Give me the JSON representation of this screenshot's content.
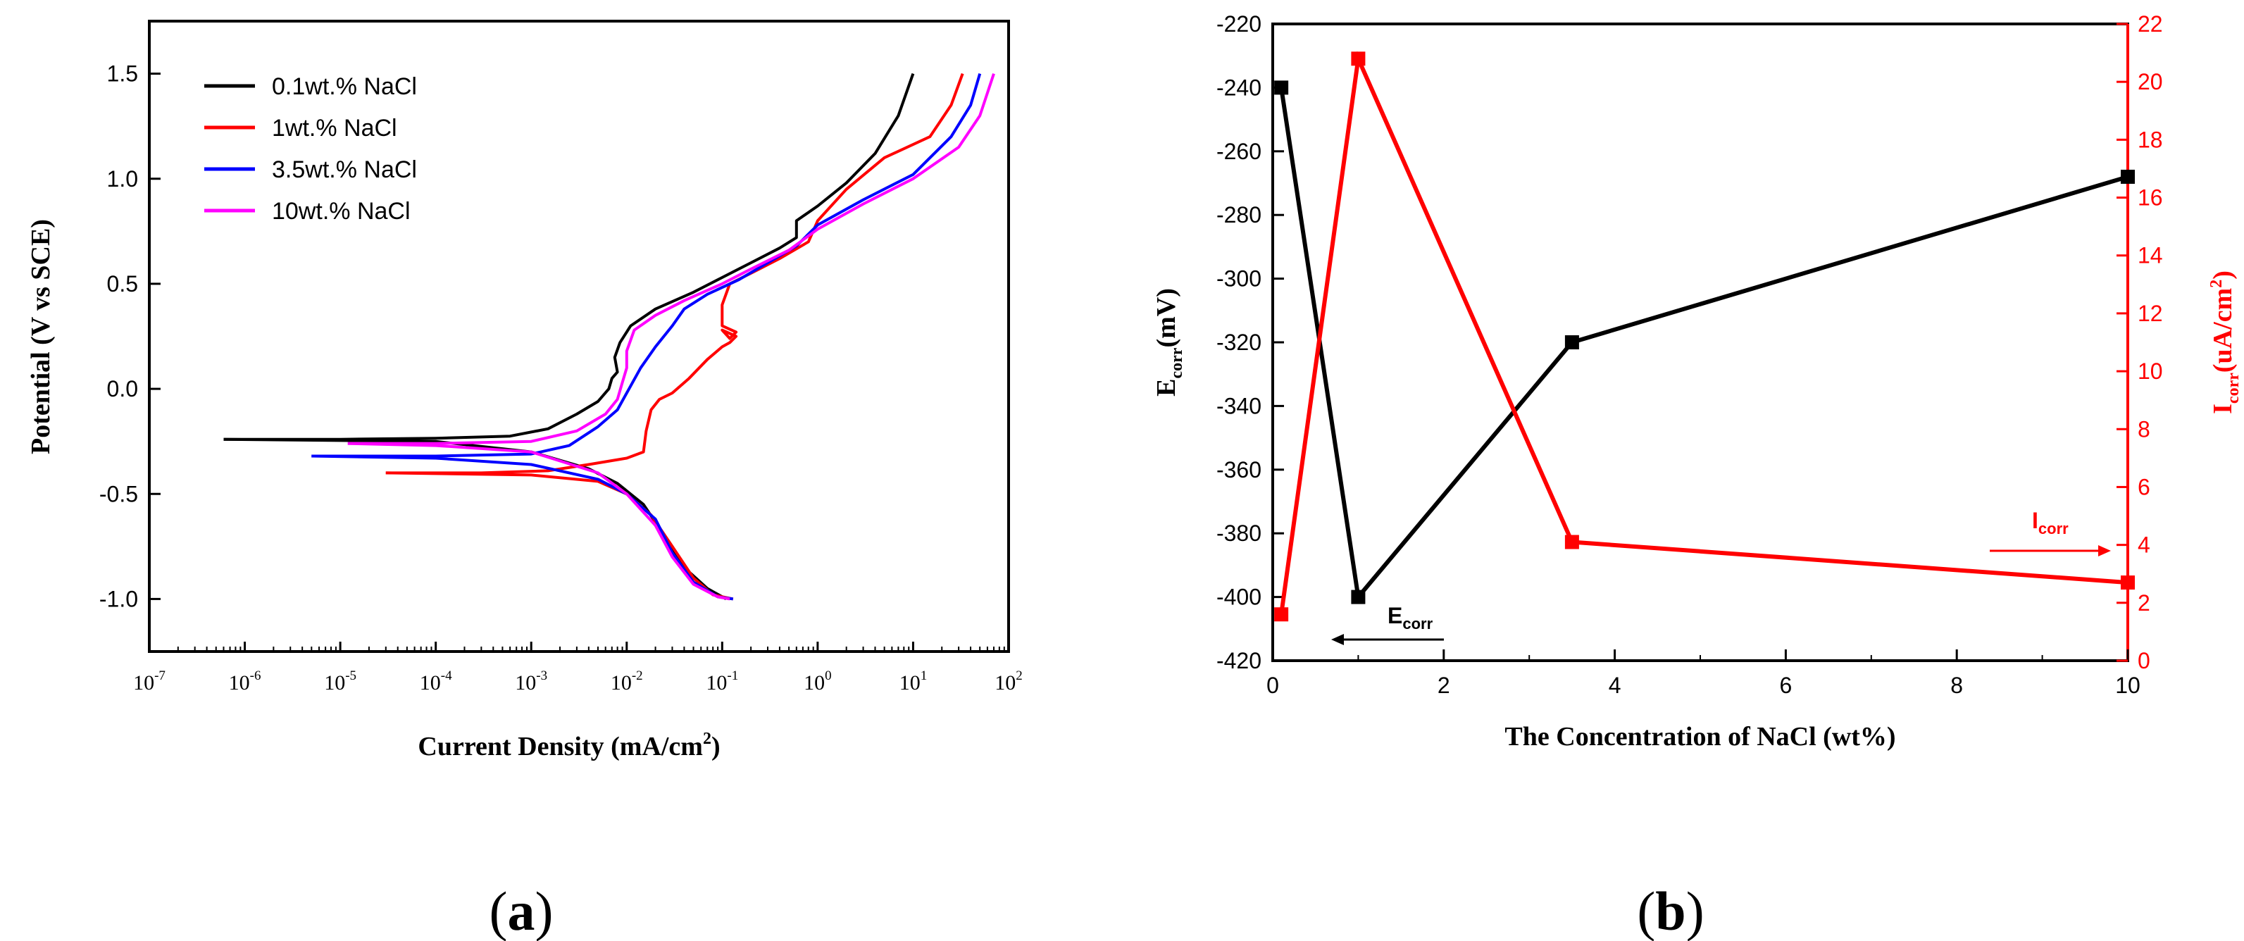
{
  "chart_data": [
    {
      "panel": "a",
      "type": "line",
      "xlabel": "Current Density (mA/cm",
      "xlabel_sup": "2",
      "xlabel_tail": ")",
      "ylabel": "Potential (V vs SCE)",
      "xscale": "log",
      "xlim": [
        1e-07,
        100
      ],
      "ylim": [
        -1.25,
        1.75
      ],
      "x_ticks": [
        {
          "b": "10",
          "e": "-7",
          "v": 1e-07
        },
        {
          "b": "10",
          "e": "-6",
          "v": 1e-06
        },
        {
          "b": "10",
          "e": "-5",
          "v": 1e-05
        },
        {
          "b": "10",
          "e": "-4",
          "v": 0.0001
        },
        {
          "b": "10",
          "e": "-3",
          "v": 0.001
        },
        {
          "b": "10",
          "e": "-2",
          "v": 0.01
        },
        {
          "b": "10",
          "e": "-1",
          "v": 0.1
        },
        {
          "b": "10",
          "e": "0",
          "v": 1
        },
        {
          "b": "10",
          "e": "1",
          "v": 10
        },
        {
          "b": "10",
          "e": "2",
          "v": 100
        }
      ],
      "y_ticks": [
        {
          "label": "1.5",
          "v": 1.5
        },
        {
          "label": "1.0",
          "v": 1.0
        },
        {
          "label": "0.5",
          "v": 0.5
        },
        {
          "label": "0.0",
          "v": 0.0
        },
        {
          "label": "-0.5",
          "v": -0.5
        },
        {
          "label": "-1.0",
          "v": -1.0
        }
      ],
      "legend_position": "top-left",
      "series": [
        {
          "name": "0.1wt.% NaCl",
          "color": "#000000",
          "points": [
            [
              6e-07,
              -0.24
            ],
            [
              1e-05,
              -0.24
            ],
            [
              0.0001,
              -0.235
            ],
            [
              0.0006,
              -0.225
            ],
            [
              0.0015,
              -0.19
            ],
            [
              0.003,
              -0.12
            ],
            [
              0.005,
              -0.06
            ],
            [
              0.0065,
              0.0
            ],
            [
              0.007,
              0.05
            ],
            [
              0.008,
              0.08
            ],
            [
              0.0075,
              0.15
            ],
            [
              0.0085,
              0.22
            ],
            [
              0.011,
              0.3
            ],
            [
              0.02,
              0.38
            ],
            [
              0.05,
              0.46
            ],
            [
              0.1,
              0.53
            ],
            [
              0.2,
              0.6
            ],
            [
              0.4,
              0.67
            ],
            [
              0.6,
              0.72
            ],
            [
              0.6,
              0.8
            ],
            [
              1,
              0.87
            ],
            [
              2,
              0.98
            ],
            [
              4,
              1.12
            ],
            [
              7,
              1.3
            ],
            [
              10.0,
              1.5
            ]
          ],
          "cathodic": [
            [
              6e-07,
              -0.24
            ],
            [
              0.0001,
              -0.25
            ],
            [
              0.001,
              -0.3
            ],
            [
              0.004,
              -0.38
            ],
            [
              0.008,
              -0.45
            ],
            [
              0.015,
              -0.55
            ],
            [
              0.025,
              -0.7
            ],
            [
              0.04,
              -0.85
            ],
            [
              0.07,
              -0.95
            ],
            [
              0.11,
              -1.0
            ]
          ]
        },
        {
          "name": "1wt.% NaCl",
          "color": "#ff0000",
          "points": [
            [
              3e-05,
              -0.4
            ],
            [
              0.0003,
              -0.4
            ],
            [
              0.0015,
              -0.39
            ],
            [
              0.004,
              -0.36
            ],
            [
              0.01,
              -0.33
            ],
            [
              0.015,
              -0.3
            ],
            [
              0.016,
              -0.2
            ],
            [
              0.018,
              -0.1
            ],
            [
              0.022,
              -0.05
            ],
            [
              0.03,
              -0.02
            ],
            [
              0.045,
              0.05
            ],
            [
              0.07,
              0.14
            ],
            [
              0.1,
              0.2
            ],
            [
              0.12,
              0.22
            ],
            [
              0.14,
              0.25
            ],
            [
              0.1,
              0.28
            ],
            [
              0.12,
              0.24
            ],
            [
              0.14,
              0.27
            ],
            [
              0.1,
              0.3
            ],
            [
              0.1,
              0.4
            ],
            [
              0.12,
              0.5
            ],
            [
              0.2,
              0.55
            ],
            [
              0.4,
              0.62
            ],
            [
              0.8,
              0.7
            ],
            [
              1,
              0.8
            ],
            [
              2,
              0.95
            ],
            [
              5,
              1.1
            ],
            [
              15.0,
              1.2
            ],
            [
              25.0,
              1.35
            ],
            [
              33.0,
              1.5
            ]
          ],
          "cathodic": [
            [
              3e-05,
              -0.4
            ],
            [
              0.001,
              -0.41
            ],
            [
              0.005,
              -0.44
            ],
            [
              0.01,
              -0.5
            ],
            [
              0.018,
              -0.6
            ],
            [
              0.03,
              -0.75
            ],
            [
              0.05,
              -0.9
            ],
            [
              0.08,
              -0.98
            ],
            [
              0.13,
              -1.0
            ]
          ]
        },
        {
          "name": "3.5wt.% NaCl",
          "color": "#0000ff",
          "points": [
            [
              5e-06,
              -0.32
            ],
            [
              0.0001,
              -0.32
            ],
            [
              0.001,
              -0.31
            ],
            [
              0.0025,
              -0.27
            ],
            [
              0.005,
              -0.18
            ],
            [
              0.008,
              -0.1
            ],
            [
              0.01,
              -0.02
            ],
            [
              0.014,
              0.1
            ],
            [
              0.02,
              0.2
            ],
            [
              0.03,
              0.3
            ],
            [
              0.04,
              0.38
            ],
            [
              0.07,
              0.45
            ],
            [
              0.15,
              0.52
            ],
            [
              0.3,
              0.6
            ],
            [
              0.6,
              0.68
            ],
            [
              1,
              0.78
            ],
            [
              3,
              0.9
            ],
            [
              10.0,
              1.02
            ],
            [
              25.0,
              1.2
            ],
            [
              40.0,
              1.35
            ],
            [
              50.0,
              1.5
            ]
          ],
          "cathodic": [
            [
              5e-06,
              -0.32
            ],
            [
              0.0001,
              -0.33
            ],
            [
              0.001,
              -0.36
            ],
            [
              0.005,
              -0.43
            ],
            [
              0.01,
              -0.5
            ],
            [
              0.02,
              -0.62
            ],
            [
              0.03,
              -0.78
            ],
            [
              0.05,
              -0.92
            ],
            [
              0.09,
              -0.99
            ],
            [
              0.13,
              -1.0
            ]
          ]
        },
        {
          "name": "10wt.% NaCl",
          "color": "#ff00ff",
          "points": [
            [
              1.2e-05,
              -0.26
            ],
            [
              0.0001,
              -0.26
            ],
            [
              0.001,
              -0.25
            ],
            [
              0.003,
              -0.2
            ],
            [
              0.006,
              -0.12
            ],
            [
              0.008,
              -0.05
            ],
            [
              0.009,
              0.03
            ],
            [
              0.01,
              0.1
            ],
            [
              0.01,
              0.18
            ],
            [
              0.012,
              0.28
            ],
            [
              0.02,
              0.35
            ],
            [
              0.04,
              0.42
            ],
            [
              0.1,
              0.5
            ],
            [
              0.2,
              0.57
            ],
            [
              0.5,
              0.66
            ],
            [
              1,
              0.76
            ],
            [
              3,
              0.88
            ],
            [
              10.0,
              1.0
            ],
            [
              30.0,
              1.15
            ],
            [
              50.0,
              1.3
            ],
            [
              70.0,
              1.5
            ]
          ],
          "cathodic": [
            [
              1.2e-05,
              -0.26
            ],
            [
              0.0001,
              -0.27
            ],
            [
              0.001,
              -0.3
            ],
            [
              0.005,
              -0.4
            ],
            [
              0.01,
              -0.5
            ],
            [
              0.02,
              -0.65
            ],
            [
              0.03,
              -0.8
            ],
            [
              0.05,
              -0.93
            ],
            [
              0.09,
              -0.99
            ],
            [
              0.12,
              -1.0
            ]
          ]
        }
      ],
      "panel_label": "(a)",
      "panel_label_letter": "a"
    },
    {
      "panel": "b",
      "type": "line",
      "xlabel": "The Concentration of NaCl (wt%)",
      "ylabel_left": "E",
      "ylabel_left_sub": "corr",
      "ylabel_left_tail": "(mV)",
      "ylabel_right": "I",
      "ylabel_right_sub": "corr",
      "ylabel_right_tail": "(uA/cm",
      "ylabel_right_sup": "2",
      "ylabel_right_end": ")",
      "xlim": [
        0,
        10
      ],
      "ylim_left": [
        -420,
        -220
      ],
      "ylim_right": [
        0,
        22
      ],
      "x_ticks": [
        0,
        2,
        4,
        6,
        8,
        10
      ],
      "y_left_ticks": [
        -220,
        -240,
        -260,
        -280,
        -300,
        -320,
        -340,
        -360,
        -380,
        -400,
        -420
      ],
      "y_right_ticks": [
        0,
        2,
        4,
        6,
        8,
        10,
        12,
        14,
        16,
        18,
        20,
        22
      ],
      "x": [
        0.1,
        1,
        3.5,
        10
      ],
      "series": [
        {
          "name": "Ecorr",
          "axis": "left",
          "color": "#000000",
          "values": [
            -240,
            -400,
            -320,
            -268
          ]
        },
        {
          "name": "Icorr",
          "axis": "right",
          "color": "#ff0000",
          "values": [
            1.6,
            20.8,
            4.1,
            2.7
          ]
        }
      ],
      "annotations": [
        {
          "text": "E",
          "sub": "corr",
          "arrow": "left",
          "color": "#000000"
        },
        {
          "text": "I",
          "sub": "corr",
          "arrow": "right",
          "color": "#ff0000"
        }
      ],
      "panel_label": "(b)",
      "panel_label_letter": "b"
    }
  ]
}
